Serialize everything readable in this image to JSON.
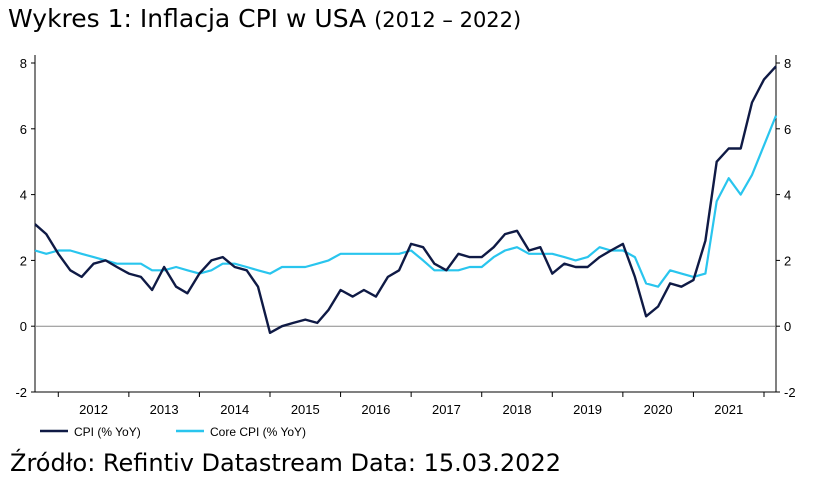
{
  "chart_data": {
    "type": "line",
    "title_main": "Wykres 1: Inflacja CPI w USA",
    "title_range": "(2012 – 2022)",
    "xlabel": "",
    "ylabel": "",
    "ylim": [
      -2,
      8
    ],
    "y_ticks": [
      "-2",
      "0",
      "2",
      "4",
      "6",
      "8"
    ],
    "x_range": [
      2011.67,
      2022.17
    ],
    "x_tick_labels": [
      "2012",
      "2013",
      "2014",
      "2015",
      "2016",
      "2017",
      "2018",
      "2019",
      "2020",
      "2021"
    ],
    "grid": false,
    "legend_position": "bottom-left",
    "colors": {
      "cpi": "#0f1a45",
      "core": "#29c5ee",
      "zero_line": "#8a8a8a"
    },
    "series": [
      {
        "name": "CPI (% YoY)",
        "x": [
          2011.67,
          2011.83,
          2012.0,
          2012.17,
          2012.33,
          2012.5,
          2012.67,
          2012.83,
          2013.0,
          2013.17,
          2013.33,
          2013.5,
          2013.67,
          2013.83,
          2014.0,
          2014.17,
          2014.33,
          2014.5,
          2014.67,
          2014.83,
          2015.0,
          2015.17,
          2015.33,
          2015.5,
          2015.67,
          2015.83,
          2016.0,
          2016.17,
          2016.33,
          2016.5,
          2016.67,
          2016.83,
          2017.0,
          2017.17,
          2017.33,
          2017.5,
          2017.67,
          2017.83,
          2018.0,
          2018.17,
          2018.33,
          2018.5,
          2018.67,
          2018.83,
          2019.0,
          2019.17,
          2019.33,
          2019.5,
          2019.67,
          2019.83,
          2020.0,
          2020.17,
          2020.33,
          2020.5,
          2020.67,
          2020.83,
          2021.0,
          2021.17,
          2021.33,
          2021.5,
          2021.67,
          2021.83,
          2022.0,
          2022.17
        ],
        "values": [
          3.1,
          2.8,
          2.2,
          1.7,
          1.5,
          1.9,
          2.0,
          1.8,
          1.6,
          1.5,
          1.1,
          1.8,
          1.2,
          1.0,
          1.6,
          2.0,
          2.1,
          1.8,
          1.7,
          1.2,
          -0.2,
          0.0,
          0.1,
          0.2,
          0.1,
          0.5,
          1.1,
          0.9,
          1.1,
          0.9,
          1.5,
          1.7,
          2.5,
          2.4,
          1.9,
          1.7,
          2.2,
          2.1,
          2.1,
          2.4,
          2.8,
          2.9,
          2.3,
          2.4,
          1.6,
          1.9,
          1.8,
          1.8,
          2.1,
          2.3,
          2.5,
          1.5,
          0.3,
          0.6,
          1.3,
          1.2,
          1.4,
          2.6,
          5.0,
          5.4,
          5.4,
          6.8,
          7.5,
          7.9
        ]
      },
      {
        "name": "Core CPI (% YoY)",
        "x": [
          2011.67,
          2011.83,
          2012.0,
          2012.17,
          2012.33,
          2012.5,
          2012.67,
          2012.83,
          2013.0,
          2013.17,
          2013.33,
          2013.5,
          2013.67,
          2013.83,
          2014.0,
          2014.17,
          2014.33,
          2014.5,
          2014.67,
          2014.83,
          2015.0,
          2015.17,
          2015.33,
          2015.5,
          2015.67,
          2015.83,
          2016.0,
          2016.17,
          2016.33,
          2016.5,
          2016.67,
          2016.83,
          2017.0,
          2017.17,
          2017.33,
          2017.5,
          2017.67,
          2017.83,
          2018.0,
          2018.17,
          2018.33,
          2018.5,
          2018.67,
          2018.83,
          2019.0,
          2019.17,
          2019.33,
          2019.5,
          2019.67,
          2019.83,
          2020.0,
          2020.17,
          2020.33,
          2020.5,
          2020.67,
          2020.83,
          2021.0,
          2021.17,
          2021.33,
          2021.5,
          2021.67,
          2021.83,
          2022.0,
          2022.17
        ],
        "values": [
          2.3,
          2.2,
          2.3,
          2.3,
          2.2,
          2.1,
          2.0,
          1.9,
          1.9,
          1.9,
          1.7,
          1.7,
          1.8,
          1.7,
          1.6,
          1.7,
          1.9,
          1.9,
          1.8,
          1.7,
          1.6,
          1.8,
          1.8,
          1.8,
          1.9,
          2.0,
          2.2,
          2.2,
          2.2,
          2.2,
          2.2,
          2.2,
          2.3,
          2.0,
          1.7,
          1.7,
          1.7,
          1.8,
          1.8,
          2.1,
          2.3,
          2.4,
          2.2,
          2.2,
          2.2,
          2.1,
          2.0,
          2.1,
          2.4,
          2.3,
          2.3,
          2.1,
          1.3,
          1.2,
          1.7,
          1.6,
          1.5,
          1.6,
          3.8,
          4.5,
          4.0,
          4.6,
          5.5,
          6.4
        ]
      }
    ]
  },
  "source_text": "Źródło: Refintiv Datastream Data: 15.03.2022"
}
